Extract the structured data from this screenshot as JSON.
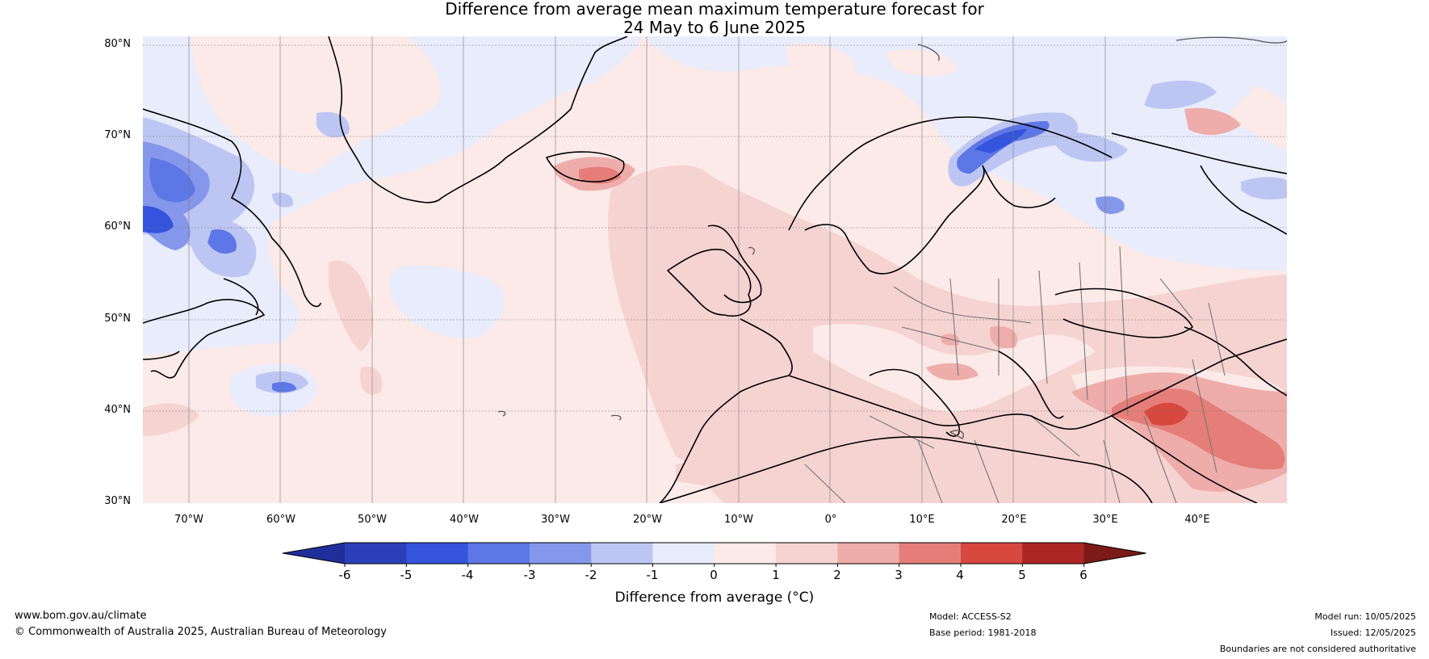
{
  "title_line1": "Difference from average mean maximum temperature forecast for",
  "title_line2": "24 May to 6 June 2025",
  "lat_labels": [
    "80°N",
    "70°N",
    "60°N",
    "50°N",
    "40°N",
    "30°N"
  ],
  "lon_labels": [
    "70°W",
    "60°W",
    "50°W",
    "40°W",
    "30°W",
    "20°W",
    "10°W",
    "0°",
    "10°E",
    "20°E",
    "30°E",
    "40°E"
  ],
  "colorbar": {
    "label": "Difference from average (°C)",
    "ticks": [
      "-6",
      "-5",
      "-4",
      "-3",
      "-2",
      "-1",
      "0",
      "1",
      "2",
      "3",
      "4",
      "5",
      "6"
    ],
    "colors": [
      "#202e9a",
      "#2b3fb8",
      "#3454dd",
      "#5d77e6",
      "#8597ea",
      "#bdc6f3",
      "#e9ecfb",
      "#fbeae8",
      "#f5d3d1",
      "#eeadaa",
      "#e57e78",
      "#d7483f",
      "#ac2724",
      "#7b1a18"
    ]
  },
  "footer": {
    "url": "www.bom.gov.au/climate",
    "copyright": "© Commonwealth of Australia 2025, Australian Bureau of Meteorology",
    "model": "Model: ACCESS-S2",
    "base_period": "Base period: 1981-2018",
    "model_run": "Model run: 10/05/2025",
    "issued": "Issued: 12/05/2025",
    "disclaimer": "Boundaries are not considered authoritative"
  }
}
